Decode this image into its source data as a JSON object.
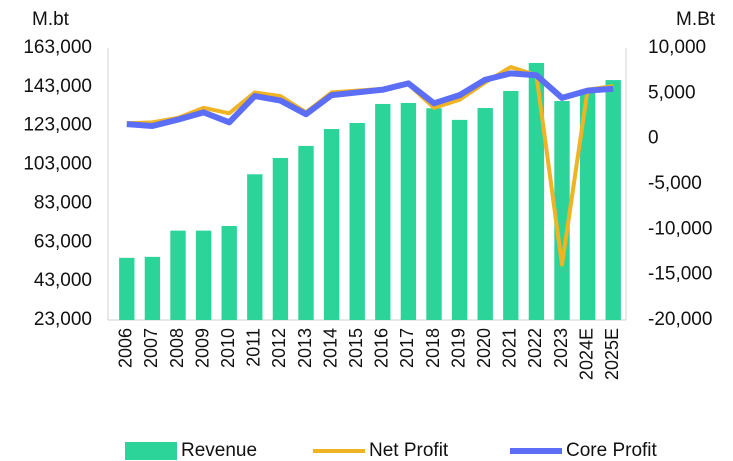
{
  "chart_data": {
    "type": "bar",
    "ylabel": "M.bt",
    "y2label": "M.Bt",
    "categories": [
      "2006",
      "2007",
      "2008",
      "2009",
      "2010",
      "2011",
      "2012",
      "2013",
      "2014",
      "2015",
      "2016",
      "2017",
      "2018",
      "2019",
      "2020",
      "2021",
      "2022",
      "2023",
      "2024E",
      "2025E"
    ],
    "series": [
      {
        "name": "Revenue",
        "type": "bar",
        "color": "#2dd49a",
        "axis": "y",
        "values": [
          55000,
          55500,
          69000,
          69000,
          71400,
          98000,
          106400,
          112600,
          121300,
          124400,
          134200,
          134700,
          132000,
          126000,
          132100,
          140900,
          155300,
          135700,
          141400,
          146500
        ]
      },
      {
        "name": "Net Profit",
        "type": "line",
        "color": "#f0b323",
        "axis": "y2",
        "values": [
          1700,
          1800,
          2300,
          3400,
          2800,
          5100,
          4700,
          2900,
          5100,
          5300,
          5500,
          6000,
          3400,
          4300,
          6200,
          7900,
          7000,
          -13900,
          5400,
          5800
        ]
      },
      {
        "name": "Core Profit",
        "type": "line",
        "color": "#5b6ef5",
        "axis": "y2",
        "values": [
          1600,
          1400,
          2100,
          2900,
          1800,
          4700,
          4200,
          2700,
          4800,
          5100,
          5400,
          6100,
          3900,
          4800,
          6500,
          7200,
          7000,
          4500,
          5300,
          5500
        ]
      }
    ],
    "ylim": [
      23000,
      163000
    ],
    "yticks": [
      {
        "value": 23000,
        "label": "23,000"
      },
      {
        "value": 43000,
        "label": "43,000"
      },
      {
        "value": 63000,
        "label": "63,000"
      },
      {
        "value": 83000,
        "label": "83,000"
      },
      {
        "value": 103000,
        "label": "103,000"
      },
      {
        "value": 123000,
        "label": "123,000"
      },
      {
        "value": 143000,
        "label": "143,000"
      },
      {
        "value": 163000,
        "label": "163,000"
      }
    ],
    "y2lim": [
      -20000,
      10000
    ],
    "y2ticks": [
      {
        "value": -20000,
        "label": "-20,000"
      },
      {
        "value": -15000,
        "label": "-15,000"
      },
      {
        "value": -10000,
        "label": "-10,000"
      },
      {
        "value": -5000,
        "label": "-5,000"
      },
      0,
      {
        "value": 5000,
        "label": "5,000"
      },
      {
        "value": 10000,
        "label": "10,000"
      }
    ],
    "legend": "bottom"
  }
}
